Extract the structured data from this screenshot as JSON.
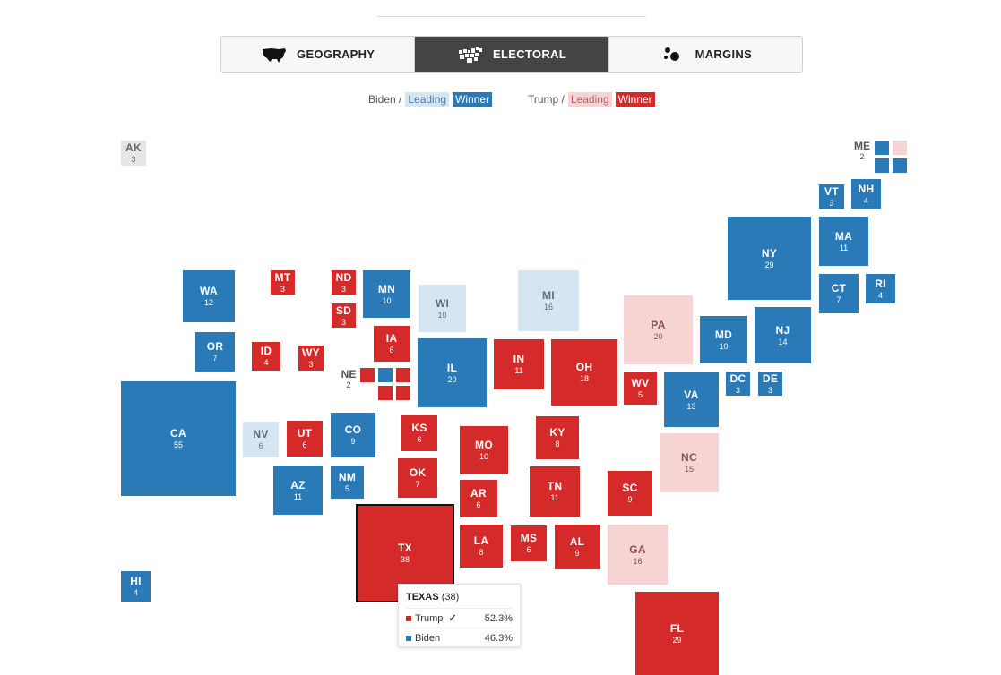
{
  "tabs": [
    {
      "label": "GEOGRAPHY",
      "icon": "us-map-icon",
      "active": false
    },
    {
      "label": "ELECTORAL",
      "icon": "electoral-map-icon",
      "active": true
    },
    {
      "label": "MARGINS",
      "icon": "bubbles-icon",
      "active": false
    }
  ],
  "legend": {
    "biden": "Biden /",
    "biden_leading": "Leading",
    "biden_winner": "Winner",
    "trump": "Trump /",
    "trump_leading": "Leading",
    "trump_winner": "Winner"
  },
  "colors": {
    "biden_winner": "#2a7ab8",
    "biden_leading": "#d5e6f2",
    "trump_winner": "#d42a2a",
    "trump_leading": "#f6d4d4",
    "no_data": "#e6e6e6"
  },
  "states": [
    {
      "id": "ak",
      "abbr": "AK",
      "ev": "3",
      "status": "nd"
    },
    {
      "id": "hi",
      "abbr": "HI",
      "ev": "4",
      "status": "bw"
    },
    {
      "id": "wa",
      "abbr": "WA",
      "ev": "12",
      "status": "bw"
    },
    {
      "id": "or",
      "abbr": "OR",
      "ev": "7",
      "status": "bw"
    },
    {
      "id": "ca",
      "abbr": "CA",
      "ev": "55",
      "status": "bw"
    },
    {
      "id": "mt",
      "abbr": "MT",
      "ev": "3",
      "status": "rw"
    },
    {
      "id": "id",
      "abbr": "ID",
      "ev": "4",
      "status": "rw"
    },
    {
      "id": "wy",
      "abbr": "WY",
      "ev": "3",
      "status": "rw"
    },
    {
      "id": "nv",
      "abbr": "NV",
      "ev": "6",
      "status": "bl"
    },
    {
      "id": "ut",
      "abbr": "UT",
      "ev": "6",
      "status": "rw"
    },
    {
      "id": "az",
      "abbr": "AZ",
      "ev": "11",
      "status": "bw"
    },
    {
      "id": "co",
      "abbr": "CO",
      "ev": "9",
      "status": "bw"
    },
    {
      "id": "nm",
      "abbr": "NM",
      "ev": "5",
      "status": "bw"
    },
    {
      "id": "nd",
      "abbr": "ND",
      "ev": "3",
      "status": "rw"
    },
    {
      "id": "sd",
      "abbr": "SD",
      "ev": "3",
      "status": "rw"
    },
    {
      "id": "ks",
      "abbr": "KS",
      "ev": "6",
      "status": "rw"
    },
    {
      "id": "ok",
      "abbr": "OK",
      "ev": "7",
      "status": "rw"
    },
    {
      "id": "tx",
      "abbr": "TX",
      "ev": "38",
      "status": "rw",
      "selected": true
    },
    {
      "id": "mn",
      "abbr": "MN",
      "ev": "10",
      "status": "bw"
    },
    {
      "id": "ia",
      "abbr": "IA",
      "ev": "6",
      "status": "rw"
    },
    {
      "id": "mo",
      "abbr": "MO",
      "ev": "10",
      "status": "rw"
    },
    {
      "id": "ar",
      "abbr": "AR",
      "ev": "6",
      "status": "rw"
    },
    {
      "id": "la",
      "abbr": "LA",
      "ev": "8",
      "status": "rw"
    },
    {
      "id": "wi",
      "abbr": "WI",
      "ev": "10",
      "status": "bl"
    },
    {
      "id": "il",
      "abbr": "IL",
      "ev": "20",
      "status": "bw"
    },
    {
      "id": "ms",
      "abbr": "MS",
      "ev": "6",
      "status": "rw"
    },
    {
      "id": "mi",
      "abbr": "MI",
      "ev": "16",
      "status": "bl"
    },
    {
      "id": "in",
      "abbr": "IN",
      "ev": "11",
      "status": "rw"
    },
    {
      "id": "ky",
      "abbr": "KY",
      "ev": "8",
      "status": "rw"
    },
    {
      "id": "tn",
      "abbr": "TN",
      "ev": "11",
      "status": "rw"
    },
    {
      "id": "al",
      "abbr": "AL",
      "ev": "9",
      "status": "rw"
    },
    {
      "id": "oh",
      "abbr": "OH",
      "ev": "18",
      "status": "rw"
    },
    {
      "id": "wv",
      "abbr": "WV",
      "ev": "5",
      "status": "rw"
    },
    {
      "id": "ga",
      "abbr": "GA",
      "ev": "16",
      "status": "rl"
    },
    {
      "id": "fl",
      "abbr": "FL",
      "ev": "29",
      "status": "rw"
    },
    {
      "id": "sc",
      "abbr": "SC",
      "ev": "9",
      "status": "rw"
    },
    {
      "id": "nc",
      "abbr": "NC",
      "ev": "15",
      "status": "rl"
    },
    {
      "id": "va",
      "abbr": "VA",
      "ev": "13",
      "status": "bw"
    },
    {
      "id": "pa",
      "abbr": "PA",
      "ev": "20",
      "status": "rl"
    },
    {
      "id": "md",
      "abbr": "MD",
      "ev": "10",
      "status": "bw"
    },
    {
      "id": "dc",
      "abbr": "DC",
      "ev": "3",
      "status": "bw"
    },
    {
      "id": "de",
      "abbr": "DE",
      "ev": "3",
      "status": "bw"
    },
    {
      "id": "ny",
      "abbr": "NY",
      "ev": "29",
      "status": "bw"
    },
    {
      "id": "nj",
      "abbr": "NJ",
      "ev": "14",
      "status": "bw"
    },
    {
      "id": "vt",
      "abbr": "VT",
      "ev": "3",
      "status": "bw"
    },
    {
      "id": "nh",
      "abbr": "NH",
      "ev": "4",
      "status": "bw"
    },
    {
      "id": "ma",
      "abbr": "MA",
      "ev": "11",
      "status": "bw"
    },
    {
      "id": "ct",
      "abbr": "CT",
      "ev": "7",
      "status": "bw"
    },
    {
      "id": "ri",
      "abbr": "RI",
      "ev": "4",
      "status": "bw"
    }
  ],
  "split_states": {
    "ne": {
      "abbr": "NE",
      "ev": "2",
      "districts": [
        "rw",
        "bw",
        "rw",
        "rw",
        "rw"
      ]
    },
    "me": {
      "abbr": "ME",
      "ev": "2",
      "districts": [
        "bw",
        "rl",
        "bw",
        "bw"
      ]
    }
  },
  "tooltip": {
    "state": "TEXAS",
    "ev": "(38)",
    "rows": [
      {
        "name": "Trump",
        "check": "✓",
        "pct": "52.3%",
        "color": "#d42a2a"
      },
      {
        "name": "Biden",
        "check": "",
        "pct": "46.3%",
        "color": "#2a7ab8"
      }
    ]
  }
}
